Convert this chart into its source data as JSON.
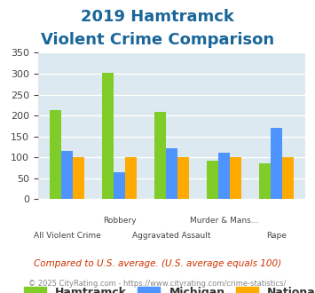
{
  "title_line1": "2019 Hamtramck",
  "title_line2": "Violent Crime Comparison",
  "categories": [
    "All Violent Crime",
    "Robbery",
    "Aggravated Assault",
    "Murder & Mans...",
    "Rape"
  ],
  "row1_labels": [
    "",
    "Robbery",
    "",
    "Murder & Mans...",
    ""
  ],
  "row2_labels": [
    "All Violent Crime",
    "",
    "Aggravated Assault",
    "",
    "Rape"
  ],
  "series": {
    "Hamtramck": [
      213,
      302,
      209,
      93,
      86
    ],
    "Michigan": [
      116,
      65,
      121,
      112,
      170
    ],
    "National": [
      100,
      100,
      100,
      100,
      100
    ]
  },
  "colors": {
    "Hamtramck": "#80cc28",
    "Michigan": "#4d94ff",
    "National": "#ffaa00"
  },
  "ylim": [
    0,
    350
  ],
  "yticks": [
    0,
    50,
    100,
    150,
    200,
    250,
    300,
    350
  ],
  "title_color": "#1a6699",
  "axis_bg_color": "#dce9f0",
  "fig_bg_color": "#ffffff",
  "grid_color": "#ffffff",
  "footnote1": "Compared to U.S. average. (U.S. average equals 100)",
  "footnote2": "© 2025 CityRating.com - https://www.cityrating.com/crime-statistics/",
  "footnote1_color": "#cc3300",
  "footnote2_color": "#888888",
  "title_fontsize": 13,
  "bar_width": 0.22,
  "legend_fontsize": 9,
  "tick_fontsize": 8
}
